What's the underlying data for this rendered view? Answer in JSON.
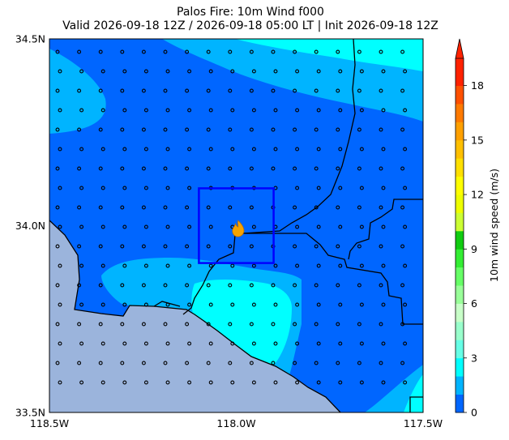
{
  "title": {
    "line1": "Palos Fire: 10m Wind f000",
    "line2": "Valid 2026-09-18 12Z / 2026-09-18 05:00 LT | Init 2026-09-18 12Z"
  },
  "map": {
    "lon_ticks": [
      "118.5W",
      "118.0W",
      "117.5W"
    ],
    "lat_ticks": [
      "34.5N",
      "34.0N",
      "33.5N"
    ],
    "lon_range": [
      -118.5,
      -117.5
    ],
    "lat_range": [
      33.5,
      34.5
    ],
    "fire_location": {
      "lon": -117.995,
      "lat": 33.99
    },
    "analysis_box": {
      "lon": [
        -118.1,
        -117.9
      ],
      "lat": [
        33.9,
        34.1
      ]
    },
    "colors": {
      "ocean": "#9bb4dc",
      "wind_0_1": "#0066ff",
      "wind_1_2": "#00b4ff",
      "wind_2_3": "#00ffff",
      "box": "#0000ff",
      "fire": "#f5a300"
    },
    "fire_icon": "flame-icon"
  },
  "colorbar": {
    "label": "10m wind speed (m/s)",
    "ticks": [
      "0",
      "3",
      "6",
      "9",
      "12",
      "15",
      "18"
    ],
    "tick_values": [
      0,
      3,
      6,
      9,
      12,
      15,
      18
    ],
    "min": 0,
    "max": 19.5,
    "extend": "max",
    "levels": [
      {
        "from": 0,
        "to": 1,
        "color": "#0066ff"
      },
      {
        "from": 1,
        "to": 2,
        "color": "#00b4ff"
      },
      {
        "from": 2,
        "to": 3,
        "color": "#00ffff"
      },
      {
        "from": 3,
        "to": 4,
        "color": "#66ffe6"
      },
      {
        "from": 4,
        "to": 5,
        "color": "#99ffcc"
      },
      {
        "from": 5,
        "to": 6,
        "color": "#c8ffc8"
      },
      {
        "from": 6,
        "to": 7,
        "color": "#99ff99"
      },
      {
        "from": 7,
        "to": 8,
        "color": "#66ff66"
      },
      {
        "from": 8,
        "to": 9,
        "color": "#33ee33"
      },
      {
        "from": 9,
        "to": 10,
        "color": "#11cc11"
      },
      {
        "from": 10,
        "to": 11,
        "color": "#ccff33"
      },
      {
        "from": 11,
        "to": 12,
        "color": "#eeff00"
      },
      {
        "from": 12,
        "to": 13,
        "color": "#ffff00"
      },
      {
        "from": 13,
        "to": 14,
        "color": "#ffe000"
      },
      {
        "from": 14,
        "to": 15,
        "color": "#ffc000"
      },
      {
        "from": 15,
        "to": 16,
        "color": "#ffa000"
      },
      {
        "from": 16,
        "to": 17,
        "color": "#ff7a00"
      },
      {
        "from": 17,
        "to": 18,
        "color": "#ff5000"
      },
      {
        "from": 18,
        "to": 19.5,
        "color": "#ff2200"
      }
    ],
    "extend_color": "#ff2200"
  }
}
